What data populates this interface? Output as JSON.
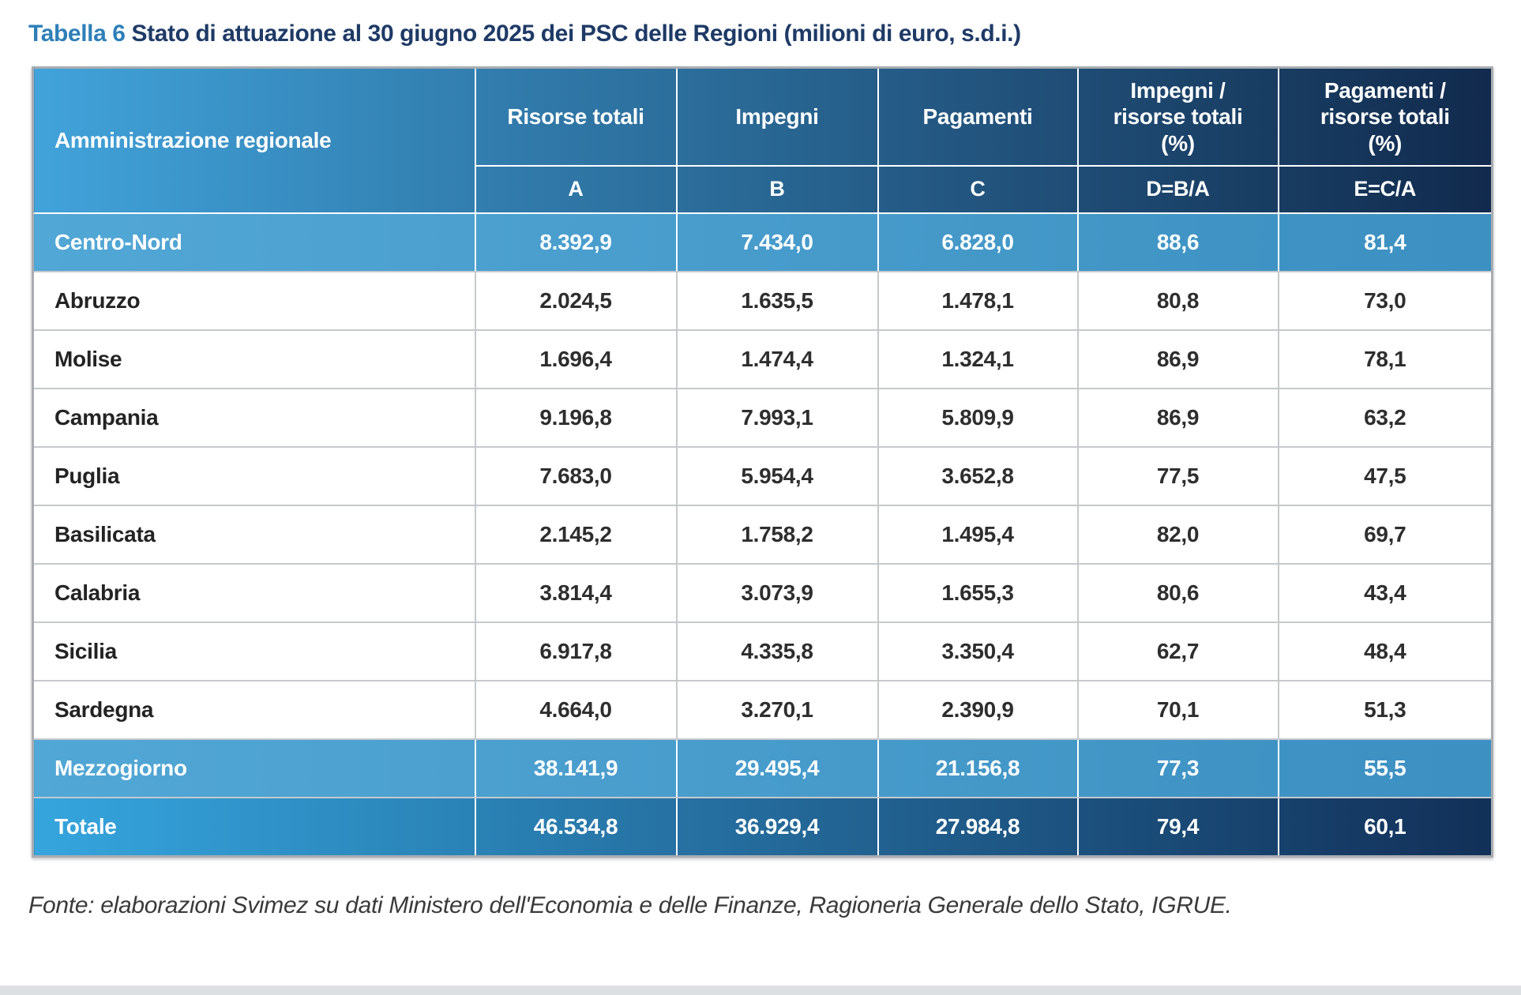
{
  "title": {
    "label": "Tabella 6",
    "text": "Stato di attuazione al 30 giugno 2025 dei PSC delle Regioni (milioni di euro, s.d.i.)"
  },
  "table": {
    "corner_header": "Amministrazione regionale",
    "columns": [
      {
        "label": "Risorse totali",
        "code": "A"
      },
      {
        "label": "Impegni",
        "code": "B"
      },
      {
        "label": "Pagamenti",
        "code": "C"
      },
      {
        "label": "Impegni /\nrisorse totali\n(%)",
        "code": "D=B/A"
      },
      {
        "label": "Pagamenti /\nrisorse totali\n(%)",
        "code": "E=C/A"
      }
    ],
    "rows": [
      {
        "name": "Centro-Nord",
        "type": "subtotal",
        "values": [
          "8.392,9",
          "7.434,0",
          "6.828,0",
          "88,6",
          "81,4"
        ]
      },
      {
        "name": "Abruzzo",
        "type": "region",
        "values": [
          "2.024,5",
          "1.635,5",
          "1.478,1",
          "80,8",
          "73,0"
        ]
      },
      {
        "name": "Molise",
        "type": "region",
        "values": [
          "1.696,4",
          "1.474,4",
          "1.324,1",
          "86,9",
          "78,1"
        ]
      },
      {
        "name": "Campania",
        "type": "region",
        "values": [
          "9.196,8",
          "7.993,1",
          "5.809,9",
          "86,9",
          "63,2"
        ]
      },
      {
        "name": "Puglia",
        "type": "region",
        "values": [
          "7.683,0",
          "5.954,4",
          "3.652,8",
          "77,5",
          "47,5"
        ]
      },
      {
        "name": "Basilicata",
        "type": "region",
        "values": [
          "2.145,2",
          "1.758,2",
          "1.495,4",
          "82,0",
          "69,7"
        ]
      },
      {
        "name": "Calabria",
        "type": "region",
        "values": [
          "3.814,4",
          "3.073,9",
          "1.655,3",
          "80,6",
          "43,4"
        ]
      },
      {
        "name": "Sicilia",
        "type": "region",
        "values": [
          "6.917,8",
          "4.335,8",
          "3.350,4",
          "62,7",
          "48,4"
        ]
      },
      {
        "name": "Sardegna",
        "type": "region",
        "values": [
          "4.664,0",
          "3.270,1",
          "2.390,9",
          "70,1",
          "51,3"
        ]
      },
      {
        "name": "Mezzogiorno",
        "type": "subtotal",
        "values": [
          "38.141,9",
          "29.495,4",
          "21.156,8",
          "77,3",
          "55,5"
        ]
      },
      {
        "name": "Totale",
        "type": "total",
        "values": [
          "46.534,8",
          "36.929,4",
          "27.984,8",
          "79,4",
          "60,1"
        ]
      }
    ]
  },
  "footer": {
    "source": "Fonte: elaborazioni Svimez su dati Ministero dell'Economia e delle Finanze, Ragioneria Generale dello Stato, IGRUE."
  },
  "colors": {
    "title_label": "#2E7FB8",
    "title_text": "#1E3A66",
    "header_gradient_start": "#41A3DA",
    "header_gradient_end": "#112A4D",
    "subtotal_row_start": "#51A7D5",
    "subtotal_row_end": "#3C90C2",
    "total_gradient_start": "#35A5DE",
    "total_gradient_end": "#123058",
    "grid_line": "#C6C9CC",
    "outer_border": "#A9ADB1",
    "bottom_bar": "#DCE0E3"
  }
}
